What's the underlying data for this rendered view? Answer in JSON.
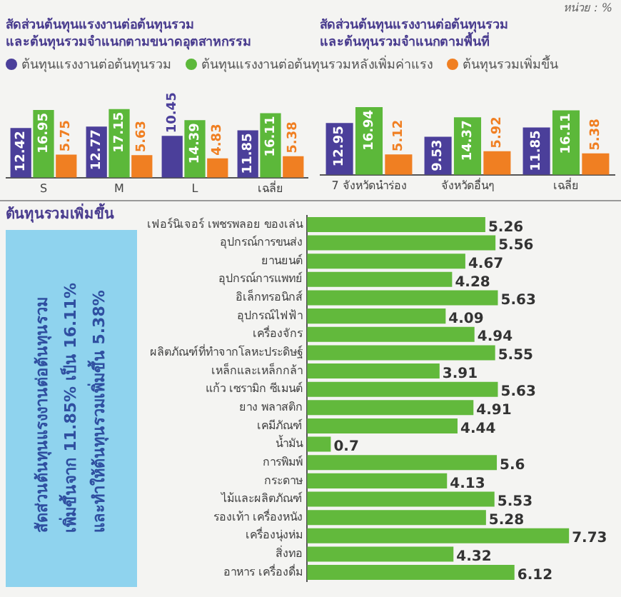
{
  "chart_data": [
    {
      "type": "bar",
      "title": "สัดส่วนต้นทุนแรงงานต่อต้นทุนรวม\nและต้นทุนรวมจำแนกตามขนาดอุตสาหกรรม",
      "categories": [
        "S",
        "M",
        "L",
        "เฉลี่ย"
      ],
      "series": [
        {
          "name": "ต้นทุนแรงงานต่อต้นทุนรวม",
          "color": "#4b3f9a",
          "values": [
            12.42,
            12.77,
            10.45,
            11.85
          ]
        },
        {
          "name": "ต้นทุนแรงงานต่อต้นทุนรวมหลังเพิ่มค่าแรง",
          "color": "#5cb83a",
          "values": [
            16.95,
            17.15,
            14.39,
            16.11
          ]
        },
        {
          "name": "ต้นทุนรวมเพิ่มขึ้น",
          "color": "#f07f22",
          "values": [
            5.75,
            5.63,
            4.83,
            5.38
          ]
        }
      ],
      "ylim": [
        0,
        18
      ],
      "tick_labels": "x",
      "data_labels": true,
      "legend": "top",
      "grid": false
    },
    {
      "type": "bar",
      "title": "สัดส่วนต้นทุนแรงงานต่อต้นทุนรวม\nและต้นทุนรวมจำแนกตามพื้นที่",
      "annotations": [
        "หน่วย : %"
      ],
      "categories": [
        "7 จังหวัดนำร่อง",
        "จังหวัดอื่นๆ",
        "เฉลี่ย"
      ],
      "series": [
        {
          "color": "#4b3f9a",
          "values": [
            12.95,
            9.53,
            11.85
          ]
        },
        {
          "color": "#5cb83a",
          "values": [
            16.94,
            14.37,
            16.11
          ]
        },
        {
          "color": "#f07f22",
          "values": [
            5.12,
            5.92,
            5.38
          ]
        }
      ],
      "ylim": [
        0,
        18
      ],
      "tick_labels": "x",
      "data_labels": true,
      "grid": false
    },
    {
      "type": "bar",
      "orientation": "horizontal",
      "title": "ต้นทุนรวมเพิ่มขึ้น",
      "annotations": [
        "สัดส่วนต้นทุนแรงงานต่อต้นทุนรวม",
        "เพิ่มขึ้นจาก 11.85% เป็น 16.11%",
        "และทำให้ต้นทุนรวมเพิ่มขึ้น 5.38%"
      ],
      "categories": [
        "เฟอร์นิเจอร์ เพชรพลอย ของเล่น",
        "อุปกรณ์การขนส่ง",
        "ยานยนต์",
        "อุปกรณ์การแพทย์",
        "อิเล็กทรอนิกส์",
        "อุปกรณ์ไฟฟ้า",
        "เครื่องจักร",
        "ผลิตภัณฑ์ที่ทำจากโลหะประดิษฐ์",
        "เหล็กและเหล็กกล้า",
        "แก้ว เซรามิก ซีเมนต์",
        "ยาง พลาสติก",
        "เคมีภัณฑ์",
        "น้ำมัน",
        "การพิมพ์",
        "กระดาษ",
        "ไม้และผลิตภัณฑ์",
        "รองเท้า เครื่องหนัง",
        "เครื่องนุ่งห่ม",
        "สิ่งทอ",
        "อาหาร เครื่องดื่ม"
      ],
      "values": [
        5.26,
        5.56,
        4.67,
        4.28,
        5.63,
        4.09,
        4.94,
        5.55,
        3.91,
        5.63,
        4.91,
        4.44,
        0.7,
        5.6,
        4.13,
        5.53,
        5.28,
        7.73,
        4.32,
        6.12
      ],
      "color": "#62b93c",
      "tick_labels": "y",
      "data_labels": true,
      "grid": false
    }
  ]
}
